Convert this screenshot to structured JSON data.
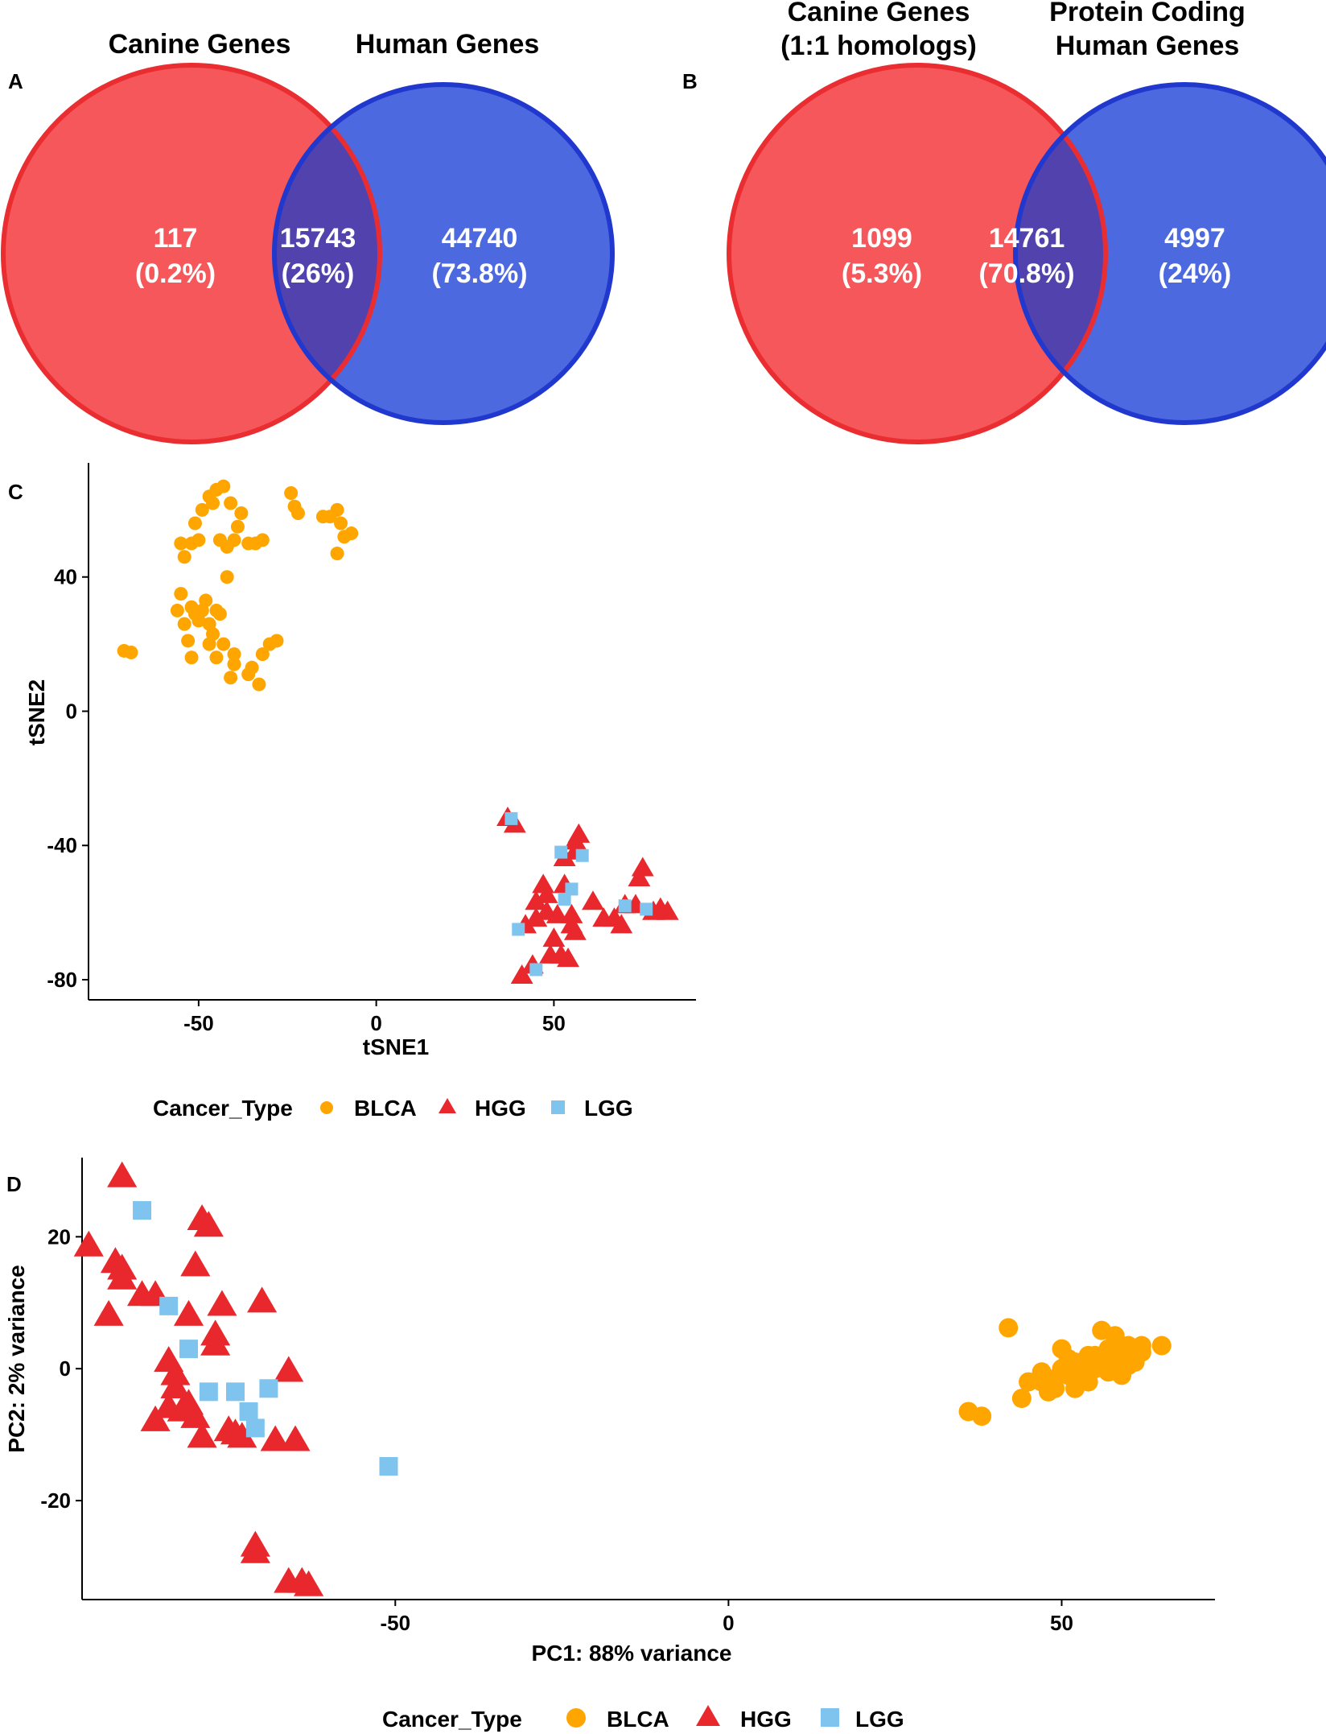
{
  "panels": {
    "a": {
      "label": "A",
      "left_title": "Canine Genes",
      "right_title": "Human Genes"
    },
    "b": {
      "label": "B",
      "left_title_line1": "Canine Genes",
      "left_title_line2": "(1:1 homologs)",
      "right_title_line1": "Protein Coding",
      "right_title_line2": "Human Genes"
    },
    "c": {
      "label": "C"
    },
    "d": {
      "label": "D"
    }
  },
  "colors": {
    "venn_left_fill": "#f5575a",
    "venn_left_stroke": "#ea2d31",
    "venn_right_fill": "#4c69e0",
    "venn_right_stroke": "#2138cf",
    "venn_overlap": "#5242ae",
    "BLCA": "#ffa500",
    "HGG": "#e8282c",
    "LGG": "#7fc4ef"
  },
  "chart_data": [
    {
      "type": "venn",
      "panel": "A",
      "sets": [
        "Canine Genes",
        "Human Genes"
      ],
      "regions": [
        {
          "region": "Canine only",
          "count": "117",
          "pct": "(0.2%)"
        },
        {
          "region": "Both",
          "count": "15743",
          "pct": "(26%)"
        },
        {
          "region": "Human only",
          "count": "44740",
          "pct": "(73.8%)"
        }
      ]
    },
    {
      "type": "venn",
      "panel": "B",
      "sets": [
        "Canine Genes (1:1 homologs)",
        "Protein Coding Human Genes"
      ],
      "regions": [
        {
          "region": "Canine only",
          "count": "1099",
          "pct": "(5.3%)"
        },
        {
          "region": "Both",
          "count": "14761",
          "pct": "(70.8%)"
        },
        {
          "region": "Human only",
          "count": "4997",
          "pct": "(24%)"
        }
      ]
    },
    {
      "type": "scatter",
      "panel": "C",
      "xlabel": "tSNE1",
      "ylabel": "tSNE2",
      "xlim": [
        -81,
        90
      ],
      "ylim": [
        -86,
        74
      ],
      "xticks": [
        -50,
        0,
        50
      ],
      "yticks": [
        -80,
        -40,
        0,
        40
      ],
      "grid": false,
      "legend": {
        "title": "Cancer_Type",
        "entries": [
          "BLCA",
          "HGG",
          "LGG"
        ],
        "position": "bottom"
      },
      "series": [
        {
          "name": "BLCA",
          "shape": "circle",
          "points": [
            [
              -71,
              18
            ],
            [
              -69,
              17.5
            ],
            [
              -55,
              50
            ],
            [
              -54,
              46
            ],
            [
              -52,
              50
            ],
            [
              -50,
              51
            ],
            [
              -51,
              56
            ],
            [
              -49,
              60
            ],
            [
              -47,
              64
            ],
            [
              -45,
              66
            ],
            [
              -43,
              67
            ],
            [
              -46,
              62
            ],
            [
              -41,
              62
            ],
            [
              -44,
              51
            ],
            [
              -42,
              49
            ],
            [
              -40,
              51
            ],
            [
              -39,
              55
            ],
            [
              -38,
              59
            ],
            [
              -36,
              50
            ],
            [
              -34,
              50
            ],
            [
              -32,
              51
            ],
            [
              -24,
              65
            ],
            [
              -23,
              61
            ],
            [
              -22,
              59
            ],
            [
              -15,
              58
            ],
            [
              -13,
              58
            ],
            [
              -11,
              60
            ],
            [
              -10,
              56
            ],
            [
              -9,
              52
            ],
            [
              -7,
              53
            ],
            [
              -11,
              47
            ],
            [
              -56,
              30
            ],
            [
              -55,
              35
            ],
            [
              -54,
              26
            ],
            [
              -52,
              31
            ],
            [
              -51,
              29
            ],
            [
              -50,
              27
            ],
            [
              -49,
              30
            ],
            [
              -48,
              33
            ],
            [
              -47,
              26
            ],
            [
              -46,
              23
            ],
            [
              -45,
              30
            ],
            [
              -44,
              29
            ],
            [
              -53,
              21
            ],
            [
              -52,
              16
            ],
            [
              -47,
              20
            ],
            [
              -45,
              16
            ],
            [
              -43,
              20
            ],
            [
              -41,
              10
            ],
            [
              -40,
              14
            ],
            [
              -40,
              17
            ],
            [
              -36,
              11
            ],
            [
              -35,
              13
            ],
            [
              -33,
              8
            ],
            [
              -32,
              17
            ],
            [
              -30,
              20
            ],
            [
              -28,
              21
            ],
            [
              -42,
              40
            ]
          ]
        },
        {
          "name": "HGG",
          "shape": "triangle",
          "points": [
            [
              37,
              -32
            ],
            [
              39,
              -34
            ],
            [
              56,
              -39
            ],
            [
              57,
              -37
            ],
            [
              56,
              -42
            ],
            [
              53,
              -44
            ],
            [
              47,
              -52
            ],
            [
              48,
              -55
            ],
            [
              53,
              -52
            ],
            [
              45,
              -57
            ],
            [
              51,
              -61
            ],
            [
              55,
              -61
            ],
            [
              61,
              -57
            ],
            [
              56,
              -66
            ],
            [
              45,
              -62
            ],
            [
              48,
              -60
            ],
            [
              42,
              -64
            ],
            [
              44,
              -76
            ],
            [
              49,
              -73
            ],
            [
              52,
              -73
            ],
            [
              54,
              -74
            ],
            [
              50,
              -68
            ],
            [
              64,
              -62
            ],
            [
              67,
              -62
            ],
            [
              69,
              -64
            ],
            [
              70,
              -58
            ],
            [
              74,
              -50
            ],
            [
              75,
              -47
            ],
            [
              73,
              -58
            ],
            [
              78,
              -60
            ],
            [
              80,
              -59
            ],
            [
              82,
              -60
            ],
            [
              41,
              -79
            ],
            [
              55,
              -64
            ]
          ]
        },
        {
          "name": "LGG",
          "shape": "square",
          "points": [
            [
              38,
              -32
            ],
            [
              52,
              -42
            ],
            [
              58,
              -43
            ],
            [
              55,
              -53
            ],
            [
              53,
              -56
            ],
            [
              70,
              -58
            ],
            [
              76,
              -59
            ],
            [
              40,
              -65
            ],
            [
              45,
              -77
            ]
          ]
        }
      ]
    },
    {
      "type": "scatter",
      "panel": "D",
      "xlabel": "PC1: 88% variance",
      "ylabel": "PC2: 2% variance",
      "xlim": [
        -97,
        73
      ],
      "ylim": [
        -35,
        32
      ],
      "xticks": [
        -50,
        0,
        50
      ],
      "yticks": [
        -20,
        0,
        20
      ],
      "grid": false,
      "legend": {
        "title": "Cancer_Type",
        "entries": [
          "BLCA",
          "HGG",
          "LGG"
        ],
        "position": "bottom"
      },
      "series": [
        {
          "name": "BLCA",
          "shape": "circle",
          "points": [
            [
              42,
              6.2
            ],
            [
              36,
              -6.5
            ],
            [
              38,
              -7.2
            ],
            [
              44,
              -4.5
            ],
            [
              45,
              -2
            ],
            [
              47,
              -0.5
            ],
            [
              48,
              -3.5
            ],
            [
              49,
              -1.5
            ],
            [
              50,
              0
            ],
            [
              50,
              3
            ],
            [
              51,
              -1
            ],
            [
              52,
              -3
            ],
            [
              52,
              1
            ],
            [
              53,
              -0.5
            ],
            [
              54,
              2
            ],
            [
              54,
              -2
            ],
            [
              55,
              0
            ],
            [
              56,
              1
            ],
            [
              56,
              5.8
            ],
            [
              57,
              -0.5
            ],
            [
              57,
              3
            ],
            [
              58,
              1.5
            ],
            [
              58,
              5
            ],
            [
              59,
              0
            ],
            [
              59,
              -1
            ],
            [
              60,
              2
            ],
            [
              60,
              3.5
            ],
            [
              61,
              1
            ],
            [
              61,
              3
            ],
            [
              62,
              2.5
            ],
            [
              62,
              3.5
            ],
            [
              65,
              3.5
            ],
            [
              53,
              -1
            ],
            [
              55,
              2
            ],
            [
              58,
              3
            ],
            [
              59,
              2
            ],
            [
              49,
              -3
            ],
            [
              47,
              -2
            ],
            [
              60,
              0.5
            ],
            [
              51,
              1.5
            ]
          ]
        },
        {
          "name": "HGG",
          "shape": "triangle",
          "points": [
            [
              -91,
              29
            ],
            [
              -96,
              18.5
            ],
            [
              -92,
              16
            ],
            [
              -91,
              15
            ],
            [
              -91,
              13.5
            ],
            [
              -93,
              8
            ],
            [
              -86,
              11
            ],
            [
              -88,
              11
            ],
            [
              -81,
              8
            ],
            [
              -79,
              22.5
            ],
            [
              -78,
              21.5
            ],
            [
              -80,
              15.5
            ],
            [
              -76,
              9.5
            ],
            [
              -77,
              5
            ],
            [
              -77,
              3.5
            ],
            [
              -70,
              10
            ],
            [
              -84,
              1
            ],
            [
              -83,
              -1
            ],
            [
              -83,
              -3
            ],
            [
              -86,
              -8
            ],
            [
              -84,
              -6
            ],
            [
              -82,
              -6.5
            ],
            [
              -81,
              -5.5
            ],
            [
              -80,
              -7.5
            ],
            [
              -79,
              -10.5
            ],
            [
              -75,
              -9.5
            ],
            [
              -74,
              -10
            ],
            [
              -73,
              -10.5
            ],
            [
              -68,
              -11
            ],
            [
              -66,
              -0.5
            ],
            [
              -65,
              -11
            ],
            [
              -71,
              -27
            ],
            [
              -71,
              -28
            ],
            [
              -66,
              -32.5
            ],
            [
              -64,
              -32.5
            ],
            [
              -63,
              -33
            ]
          ]
        },
        {
          "name": "LGG",
          "shape": "square",
          "points": [
            [
              -88,
              24
            ],
            [
              -84,
              9.5
            ],
            [
              -81,
              3
            ],
            [
              -78,
              -3.5
            ],
            [
              -74,
              -3.5
            ],
            [
              -69,
              -3
            ],
            [
              -72,
              -6.5
            ],
            [
              -71,
              -9
            ],
            [
              -51,
              -14.8
            ]
          ]
        }
      ]
    }
  ]
}
